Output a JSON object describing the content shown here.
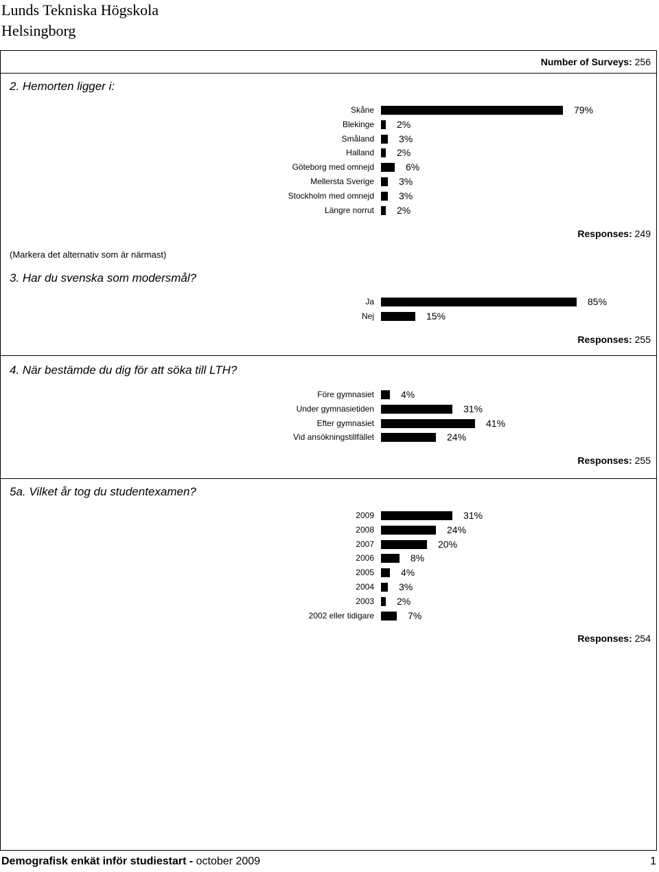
{
  "header": {
    "line1": "Lunds Tekniska Högskola",
    "line2": "Helsingborg"
  },
  "surveys": {
    "label": "Number of Surveys:",
    "value": "256"
  },
  "q2": {
    "title": "2. Hemorten ligger i:",
    "note": "(Markera det alternativ som är närmast)",
    "responses_label": "Responses:",
    "responses": "249",
    "items": [
      {
        "label": "Skåne",
        "pct": "79%",
        "value": 79
      },
      {
        "label": "Blekinge",
        "pct": "2%",
        "value": 2
      },
      {
        "label": "Småland",
        "pct": "3%",
        "value": 3
      },
      {
        "label": "Halland",
        "pct": "2%",
        "value": 2
      },
      {
        "label": "Göteborg med omnejd",
        "pct": "6%",
        "value": 6
      },
      {
        "label": "Mellersta Sverige",
        "pct": "3%",
        "value": 3
      },
      {
        "label": "Stockholm med omnejd",
        "pct": "3%",
        "value": 3
      },
      {
        "label": "Längre norrut",
        "pct": "2%",
        "value": 2
      }
    ]
  },
  "q3": {
    "title": "3. Har du svenska som modersmål?",
    "responses_label": "Responses:",
    "responses": "255",
    "items": [
      {
        "label": "Ja",
        "pct": "85%",
        "value": 85
      },
      {
        "label": "Nej",
        "pct": "15%",
        "value": 15
      }
    ]
  },
  "q4": {
    "title": "4. När bestämde du dig för att söka till LTH?",
    "responses_label": "Responses:",
    "responses": "255",
    "items": [
      {
        "label": "Före gymnasiet",
        "pct": "4%",
        "value": 4
      },
      {
        "label": "Under gymnasietiden",
        "pct": "31%",
        "value": 31
      },
      {
        "label": "Efter gymnasiet",
        "pct": "41%",
        "value": 41
      },
      {
        "label": "Vid ansökningstillfället",
        "pct": "24%",
        "value": 24
      }
    ]
  },
  "q5a": {
    "title": "5a. Vilket år tog du studentexamen?",
    "responses_label": "Responses:",
    "responses": "254",
    "items": [
      {
        "label": "2009",
        "pct": "31%",
        "value": 31
      },
      {
        "label": "2008",
        "pct": "24%",
        "value": 24
      },
      {
        "label": "2007",
        "pct": "20%",
        "value": 20
      },
      {
        "label": "2006",
        "pct": "8%",
        "value": 8
      },
      {
        "label": "2005",
        "pct": "4%",
        "value": 4
      },
      {
        "label": "2004",
        "pct": "3%",
        "value": 3
      },
      {
        "label": "2003",
        "pct": "2%",
        "value": 2
      },
      {
        "label": "2002 eller tidigare",
        "pct": "7%",
        "value": 7
      }
    ]
  },
  "footer": {
    "title": "Demografisk enkät inför studiestart -",
    "date": "october 2009",
    "page": "1"
  },
  "colors": {
    "bar": "#000000",
    "border": "#000000"
  }
}
